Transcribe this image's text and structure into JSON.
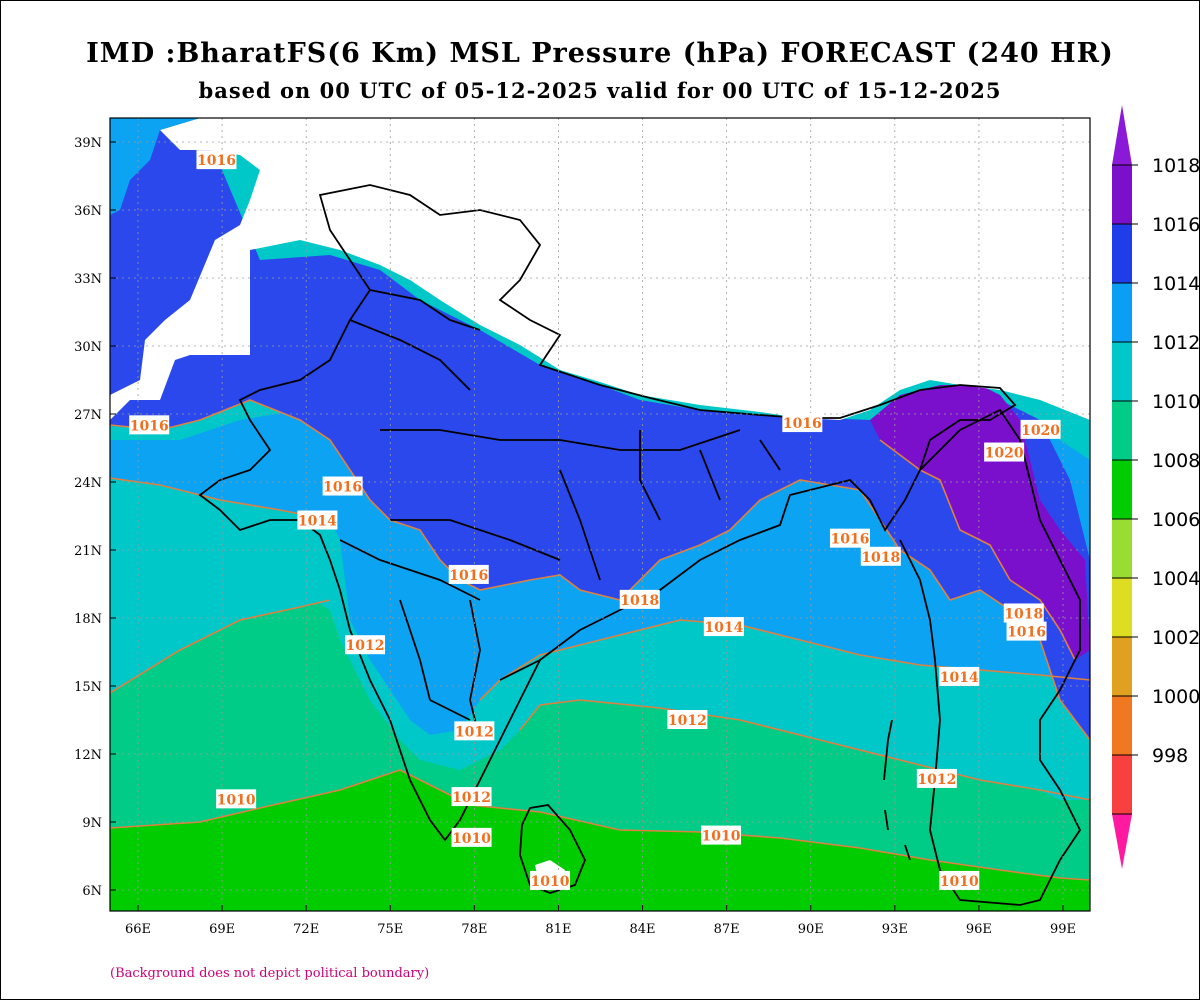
{
  "title": "IMD :BharatFS(6 Km) MSL Pressure (hPa) FORECAST (240 HR)",
  "subtitle": "based on 00 UTC of 05-12-2025 valid for 00 UTC of 15-12-2025",
  "footnote": "(Background does not depict political boundary)",
  "map": {
    "lon_range": [
      65,
      100
    ],
    "lat_range": [
      5,
      40
    ],
    "lon_ticks": [
      {
        "value": 66,
        "label": "66E"
      },
      {
        "value": 69,
        "label": "69E"
      },
      {
        "value": 72,
        "label": "72E"
      },
      {
        "value": 75,
        "label": "75E"
      },
      {
        "value": 78,
        "label": "78E"
      },
      {
        "value": 81,
        "label": "81E"
      },
      {
        "value": 84,
        "label": "84E"
      },
      {
        "value": 87,
        "label": "87E"
      },
      {
        "value": 90,
        "label": "90E"
      },
      {
        "value": 93,
        "label": "93E"
      },
      {
        "value": 96,
        "label": "96E"
      },
      {
        "value": 99,
        "label": "99E"
      }
    ],
    "lat_ticks": [
      {
        "value": 39,
        "label": "39N"
      },
      {
        "value": 36,
        "label": "36N"
      },
      {
        "value": 33,
        "label": "33N"
      },
      {
        "value": 30,
        "label": "30N"
      },
      {
        "value": 27,
        "label": "27N"
      },
      {
        "value": 24,
        "label": "24N"
      },
      {
        "value": 21,
        "label": "21N"
      },
      {
        "value": 18,
        "label": "18N"
      },
      {
        "value": 15,
        "label": "15N"
      },
      {
        "value": 12,
        "label": "12N"
      },
      {
        "value": 9,
        "label": "9N"
      },
      {
        "value": 6,
        "label": "6N"
      }
    ],
    "grid": true,
    "contour_labels": [
      {
        "text": "1016",
        "lon": 66.4,
        "lat": 26.5
      },
      {
        "text": "1016",
        "lon": 68.8,
        "lat": 38.2
      },
      {
        "text": "1016",
        "lon": 73.3,
        "lat": 23.8
      },
      {
        "text": "1014",
        "lon": 72.4,
        "lat": 22.3
      },
      {
        "text": "1016",
        "lon": 77.8,
        "lat": 19.9
      },
      {
        "text": "1016",
        "lon": 89.7,
        "lat": 26.6
      },
      {
        "text": "1016",
        "lon": 91.4,
        "lat": 21.5
      },
      {
        "text": "1018",
        "lon": 92.5,
        "lat": 20.7
      },
      {
        "text": "1020",
        "lon": 96.9,
        "lat": 25.3
      },
      {
        "text": "1020",
        "lon": 98.2,
        "lat": 26.3
      },
      {
        "text": "1012",
        "lon": 74.1,
        "lat": 16.8
      },
      {
        "text": "1014",
        "lon": 86.9,
        "lat": 17.6
      },
      {
        "text": "1014",
        "lon": 95.3,
        "lat": 15.4
      },
      {
        "text": "1018",
        "lon": 97.6,
        "lat": 18.2
      },
      {
        "text": "1016",
        "lon": 97.7,
        "lat": 17.4
      },
      {
        "text": "1012",
        "lon": 78.0,
        "lat": 13.0
      },
      {
        "text": "1012",
        "lon": 85.6,
        "lat": 13.5
      },
      {
        "text": "1012",
        "lon": 77.9,
        "lat": 10.1
      },
      {
        "text": "1012",
        "lon": 94.5,
        "lat": 10.9
      },
      {
        "text": "1010",
        "lon": 69.5,
        "lat": 10.0
      },
      {
        "text": "1010",
        "lon": 77.9,
        "lat": 8.3
      },
      {
        "text": "1010",
        "lon": 86.8,
        "lat": 8.4
      },
      {
        "text": "1010",
        "lon": 80.7,
        "lat": 6.4
      },
      {
        "text": "1010",
        "lon": 95.3,
        "lat": 6.4
      },
      {
        "text": "1018",
        "lon": 83.9,
        "lat": 18.8
      }
    ]
  },
  "colorbar": {
    "levels": [
      {
        "value": "1018",
        "color": "#7b10cc"
      },
      {
        "value": "1016",
        "color": "#1f3de8"
      },
      {
        "value": "1014",
        "color": "#0b9ef5"
      },
      {
        "value": "1012",
        "color": "#00c8c8"
      },
      {
        "value": "1010",
        "color": "#00cc88"
      },
      {
        "value": "1008",
        "color": "#00cc00"
      },
      {
        "value": "1006",
        "color": "#99dd33"
      },
      {
        "value": "1004",
        "color": "#dddd22"
      },
      {
        "value": "1002",
        "color": "#e0a020"
      },
      {
        "value": "1000",
        "color": "#f07820"
      },
      {
        "value": "998",
        "color": "#f84040"
      }
    ],
    "top_color": "#8a1ad8",
    "bottom_color": "#ff1aa0"
  },
  "colors": {
    "band_1018": "#7b10cc",
    "band_1016": "#2a48ec",
    "band_1014": "#0ca4f2",
    "band_1012": "#00c8c8",
    "band_1010": "#00cc88",
    "band_1008": "#00cc00",
    "contour": "#e08040",
    "boundary": "#000000"
  }
}
